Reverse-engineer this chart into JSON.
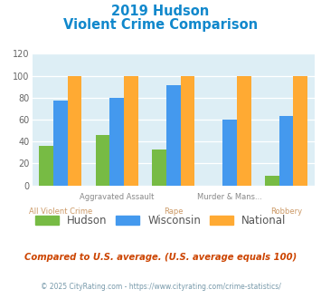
{
  "title_line1": "2019 Hudson",
  "title_line2": "Violent Crime Comparison",
  "categories": [
    "All Violent Crime",
    "Aggravated Assault",
    "Rape",
    "Murder & Mans...",
    "Robbery"
  ],
  "series": {
    "Hudson": [
      36,
      46,
      33,
      0,
      9
    ],
    "Wisconsin": [
      77,
      80,
      91,
      60,
      63
    ],
    "National": [
      100,
      100,
      100,
      100,
      100
    ]
  },
  "colors": {
    "Hudson": "#77bb44",
    "Wisconsin": "#4499ee",
    "National": "#ffaa33"
  },
  "ylim": [
    0,
    120
  ],
  "yticks": [
    0,
    20,
    40,
    60,
    80,
    100,
    120
  ],
  "title_color": "#1188cc",
  "bg_color": "#ddeef5",
  "footer_text": "Compared to U.S. average. (U.S. average equals 100)",
  "copyright_text": "© 2025 CityRating.com - https://www.cityrating.com/crime-statistics/",
  "footer_color": "#cc4400",
  "copyright_color": "#7799aa"
}
